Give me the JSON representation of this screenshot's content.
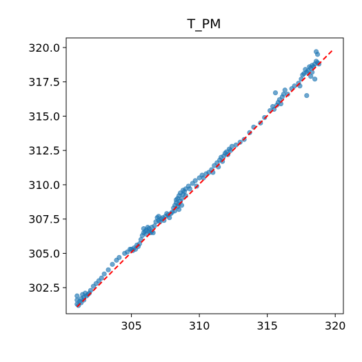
{
  "chart_data": {
    "type": "scatter",
    "title": "T_PM",
    "xlabel": "",
    "ylabel": "",
    "xlim": [
      300.2,
      320.6
    ],
    "ylim": [
      300.6,
      320.7
    ],
    "xticks": [
      305,
      310,
      315,
      320
    ],
    "xtick_labels": [
      "305",
      "310",
      "315",
      "320"
    ],
    "yticks": [
      302.5,
      305.0,
      307.5,
      310.0,
      312.5,
      315.0,
      317.5,
      320.0
    ],
    "ytick_labels": [
      "302.5",
      "305.0",
      "307.5",
      "310.0",
      "312.5",
      "315.0",
      "317.5",
      "320.0"
    ],
    "grid": false,
    "legend": "none",
    "point_color": "#1f77b4",
    "point_alpha": 0.65,
    "reference_line": {
      "style": "dashed",
      "color": "#ff0000",
      "x": [
        301.0,
        319.8
      ],
      "y": [
        301.1,
        319.8
      ]
    },
    "points": [
      [
        301.0,
        301.3
      ],
      [
        301.0,
        301.6
      ],
      [
        301.0,
        301.9
      ],
      [
        301.1,
        301.2
      ],
      [
        301.2,
        301.5
      ],
      [
        301.3,
        301.7
      ],
      [
        301.3,
        301.4
      ],
      [
        301.4,
        302.0
      ],
      [
        301.5,
        301.6
      ],
      [
        301.5,
        301.8
      ],
      [
        301.6,
        302.1
      ],
      [
        301.7,
        301.9
      ],
      [
        301.8,
        302.0
      ],
      [
        301.9,
        302.1
      ],
      [
        302.0,
        302.3
      ],
      [
        302.2,
        302.6
      ],
      [
        302.4,
        302.8
      ],
      [
        302.6,
        303.0
      ],
      [
        302.8,
        303.2
      ],
      [
        303.0,
        303.5
      ],
      [
        303.3,
        303.8
      ],
      [
        303.6,
        304.2
      ],
      [
        303.9,
        304.5
      ],
      [
        304.1,
        304.7
      ],
      [
        304.5,
        305.0
      ],
      [
        304.7,
        305.1
      ],
      [
        304.9,
        305.3
      ],
      [
        305.0,
        305.3
      ],
      [
        305.1,
        305.2
      ],
      [
        305.2,
        305.4
      ],
      [
        305.3,
        305.3
      ],
      [
        305.4,
        305.6
      ],
      [
        305.5,
        305.5
      ],
      [
        305.6,
        305.7
      ],
      [
        305.7,
        306.0
      ],
      [
        305.8,
        306.3
      ],
      [
        305.9,
        306.5
      ],
      [
        305.9,
        306.8
      ],
      [
        306.0,
        306.6
      ],
      [
        306.1,
        306.7
      ],
      [
        306.1,
        306.4
      ],
      [
        306.2,
        306.9
      ],
      [
        306.3,
        306.6
      ],
      [
        306.3,
        306.8
      ],
      [
        306.4,
        306.5
      ],
      [
        306.5,
        306.9
      ],
      [
        306.5,
        306.6
      ],
      [
        306.6,
        306.5
      ],
      [
        306.7,
        307.0
      ],
      [
        306.8,
        307.3
      ],
      [
        306.9,
        307.6
      ],
      [
        307.0,
        307.4
      ],
      [
        307.0,
        307.7
      ],
      [
        307.1,
        307.3
      ],
      [
        307.2,
        307.5
      ],
      [
        307.3,
        307.6
      ],
      [
        307.4,
        307.4
      ],
      [
        307.5,
        307.7
      ],
      [
        307.6,
        307.9
      ],
      [
        307.7,
        307.8
      ],
      [
        307.8,
        307.6
      ],
      [
        307.9,
        307.9
      ],
      [
        308.0,
        308.0
      ],
      [
        308.1,
        308.3
      ],
      [
        308.2,
        308.5
      ],
      [
        308.2,
        308.1
      ],
      [
        308.3,
        308.7
      ],
      [
        308.3,
        308.9
      ],
      [
        308.4,
        308.4
      ],
      [
        308.4,
        309.0
      ],
      [
        308.5,
        308.6
      ],
      [
        308.5,
        309.2
      ],
      [
        308.5,
        308.2
      ],
      [
        308.6,
        308.8
      ],
      [
        308.6,
        309.4
      ],
      [
        308.7,
        309.0
      ],
      [
        308.7,
        308.5
      ],
      [
        308.8,
        309.3
      ],
      [
        308.8,
        309.6
      ],
      [
        308.9,
        309.5
      ],
      [
        309.0,
        309.7
      ],
      [
        309.0,
        309.2
      ],
      [
        309.2,
        309.9
      ],
      [
        309.3,
        309.7
      ],
      [
        309.5,
        310.1
      ],
      [
        309.7,
        310.3
      ],
      [
        309.8,
        309.9
      ],
      [
        310.0,
        310.5
      ],
      [
        310.2,
        310.7
      ],
      [
        310.3,
        310.5
      ],
      [
        310.5,
        310.8
      ],
      [
        310.7,
        310.9
      ],
      [
        310.9,
        311.1
      ],
      [
        311.0,
        310.9
      ],
      [
        311.1,
        311.4
      ],
      [
        311.3,
        311.6
      ],
      [
        311.4,
        311.3
      ],
      [
        311.5,
        311.8
      ],
      [
        311.6,
        312.0
      ],
      [
        311.7,
        311.7
      ],
      [
        311.8,
        312.1
      ],
      [
        311.9,
        312.3
      ],
      [
        312.0,
        312.4
      ],
      [
        312.1,
        312.2
      ],
      [
        312.2,
        312.6
      ],
      [
        312.3,
        312.5
      ],
      [
        312.4,
        312.8
      ],
      [
        312.7,
        312.9
      ],
      [
        313.0,
        313.1
      ],
      [
        313.3,
        313.3
      ],
      [
        313.7,
        313.8
      ],
      [
        314.0,
        314.2
      ],
      [
        314.5,
        314.5
      ],
      [
        314.8,
        314.9
      ],
      [
        315.2,
        315.4
      ],
      [
        315.4,
        315.7
      ],
      [
        315.5,
        315.5
      ],
      [
        315.6,
        316.7
      ],
      [
        315.7,
        315.8
      ],
      [
        315.8,
        316.0
      ],
      [
        315.9,
        316.2
      ],
      [
        316.0,
        315.9
      ],
      [
        316.1,
        316.4
      ],
      [
        316.2,
        316.6
      ],
      [
        316.3,
        316.9
      ],
      [
        316.5,
        316.6
      ],
      [
        316.8,
        317.0
      ],
      [
        317.0,
        317.2
      ],
      [
        317.3,
        317.4
      ],
      [
        317.4,
        317.2
      ],
      [
        317.5,
        317.7
      ],
      [
        317.6,
        318.0
      ],
      [
        317.7,
        318.1
      ],
      [
        317.8,
        318.4
      ],
      [
        317.9,
        316.5
      ],
      [
        317.9,
        318.2
      ],
      [
        318.0,
        318.3
      ],
      [
        318.1,
        318.6
      ],
      [
        318.2,
        318.5
      ],
      [
        318.3,
        318.7
      ],
      [
        318.4,
        318.6
      ],
      [
        318.5,
        318.8
      ],
      [
        318.6,
        319.0
      ],
      [
        318.7,
        318.9
      ],
      [
        318.6,
        319.7
      ],
      [
        318.7,
        319.5
      ],
      [
        318.8,
        318.8
      ],
      [
        318.5,
        317.7
      ],
      [
        318.2,
        317.9
      ],
      [
        318.3,
        318.2
      ]
    ]
  }
}
